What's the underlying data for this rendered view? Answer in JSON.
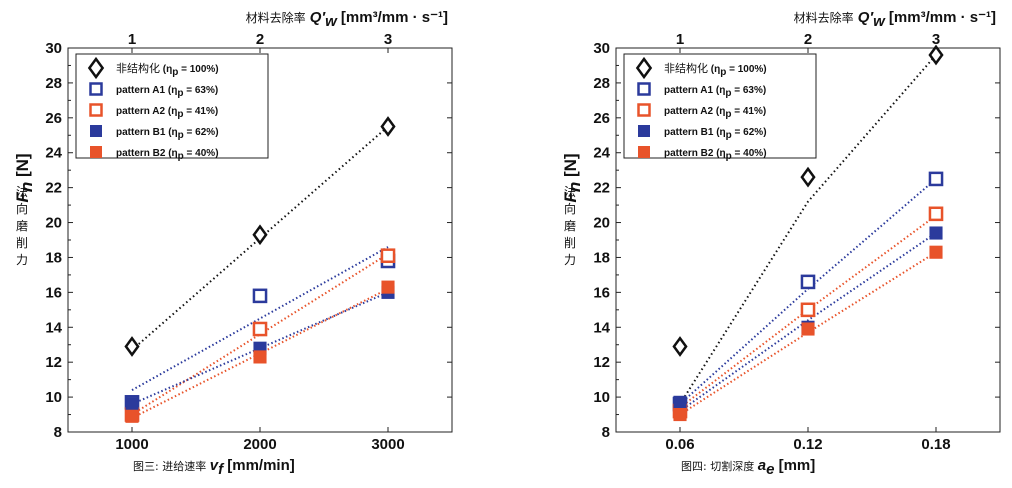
{
  "chart_data": [
    {
      "type": "scatter",
      "caption_prefix": "图三:",
      "xlabel_cn": "进给速率",
      "xlabel_sym": "v",
      "xlabel_sub": "f",
      "xlabel_unit": "[mm/min]",
      "toplabel_cn": "材料去除率",
      "toplabel_sym": "Q′",
      "toplabel_sub": "w",
      "toplabel_unit": "[mm³/mm · s⁻¹]",
      "ylabel_sym": "F",
      "ylabel_sub": "n",
      "ylabel_unit": "[N]",
      "ylabel_cn": [
        "法",
        "向",
        "磨",
        "削",
        "力"
      ],
      "x_ticks": [
        "1000",
        "2000",
        "3000"
      ],
      "x_values": [
        1000,
        2000,
        3000
      ],
      "xlim": [
        500,
        3500
      ],
      "top_ticks": [
        "1",
        "2",
        "3"
      ],
      "ylim": [
        8,
        30
      ],
      "y_ticks": [
        "8",
        "10",
        "12",
        "14",
        "16",
        "18",
        "20",
        "22",
        "24",
        "26",
        "28",
        "30"
      ],
      "legend_position": "top-left",
      "series": [
        {
          "name": "非结构化",
          "eta": "(η",
          "eta_sub": "p",
          "eta_val": "= 100%)",
          "marker": "diamond",
          "color": "#111111",
          "values": [
            12.9,
            19.3,
            25.5
          ],
          "fit": [
            12.7,
            19.1,
            25.5
          ]
        },
        {
          "name": "pattern A1",
          "eta": "(η",
          "eta_sub": "p",
          "eta_val": "= 63%)",
          "marker": "square-open",
          "color": "#2b3a9c",
          "values": [
            9.7,
            15.8,
            17.8
          ],
          "fit": [
            10.4,
            14.5,
            18.6
          ]
        },
        {
          "name": "pattern A2",
          "eta": "(η",
          "eta_sub": "p",
          "eta_val": "= 41%)",
          "marker": "square-open",
          "color": "#e8532a",
          "values": [
            9.0,
            13.9,
            18.1
          ],
          "fit": [
            9.0,
            13.6,
            18.2
          ]
        },
        {
          "name": "pattern B1",
          "eta": "(η",
          "eta_sub": "p",
          "eta_val": "= 62%)",
          "marker": "square-filled",
          "color": "#2b3a9c",
          "values": [
            9.6,
            12.8,
            16.0
          ],
          "fit": [
            9.6,
            12.8,
            16.0
          ]
        },
        {
          "name": "pattern B2",
          "eta": "(η",
          "eta_sub": "p",
          "eta_val": "= 40%)",
          "marker": "square-filled",
          "color": "#e8532a",
          "values": [
            8.9,
            12.3,
            16.3
          ],
          "fit": [
            8.8,
            12.5,
            16.2
          ]
        }
      ]
    },
    {
      "type": "scatter",
      "caption_prefix": "图四:",
      "xlabel_cn": "切割深度",
      "xlabel_sym": "a",
      "xlabel_sub": "e",
      "xlabel_unit": "[mm]",
      "toplabel_cn": "材料去除率",
      "toplabel_sym": "Q′",
      "toplabel_sub": "w",
      "toplabel_unit": "[mm³/mm · s⁻¹]",
      "ylabel_sym": "F",
      "ylabel_sub": "n",
      "ylabel_unit": "[N]",
      "ylabel_cn": [
        "法",
        "向",
        "磨",
        "削",
        "力"
      ],
      "x_ticks": [
        "0.06",
        "0.12",
        "0.18"
      ],
      "x_values": [
        0.06,
        0.12,
        0.18
      ],
      "xlim": [
        0.03,
        0.21
      ],
      "top_ticks": [
        "1",
        "2",
        "3"
      ],
      "ylim": [
        8,
        30
      ],
      "y_ticks": [
        "8",
        "10",
        "12",
        "14",
        "16",
        "18",
        "20",
        "22",
        "24",
        "26",
        "28",
        "30"
      ],
      "legend_position": "top-left",
      "series": [
        {
          "name": "非结构化",
          "eta": "(η",
          "eta_sub": "p",
          "eta_val": "= 100%)",
          "marker": "diamond",
          "color": "#111111",
          "values": [
            12.9,
            22.6,
            29.6
          ],
          "fit": [
            9.6,
            21.2,
            29.6
          ]
        },
        {
          "name": "pattern A1",
          "eta": "(η",
          "eta_sub": "p",
          "eta_val": "= 63%)",
          "marker": "square-open",
          "color": "#2b3a9c",
          "values": [
            9.6,
            16.6,
            22.5
          ],
          "fit": [
            9.6,
            16.2,
            22.5
          ]
        },
        {
          "name": "pattern A2",
          "eta": "(η",
          "eta_sub": "p",
          "eta_val": "= 41%)",
          "marker": "square-open",
          "color": "#e8532a",
          "values": [
            9.2,
            15.0,
            20.5
          ],
          "fit": [
            9.4,
            15.0,
            20.4
          ]
        },
        {
          "name": "pattern B1",
          "eta": "(η",
          "eta_sub": "p",
          "eta_val": "= 62%)",
          "marker": "square-filled",
          "color": "#2b3a9c",
          "values": [
            9.7,
            14.0,
            19.4
          ],
          "fit": [
            9.2,
            14.4,
            19.4
          ]
        },
        {
          "name": "pattern B2",
          "eta": "(η",
          "eta_sub": "p",
          "eta_val": "= 40%)",
          "marker": "square-filled",
          "color": "#e8532a",
          "values": [
            9.0,
            13.9,
            18.3
          ],
          "fit": [
            9.0,
            13.7,
            18.3
          ]
        }
      ]
    }
  ]
}
